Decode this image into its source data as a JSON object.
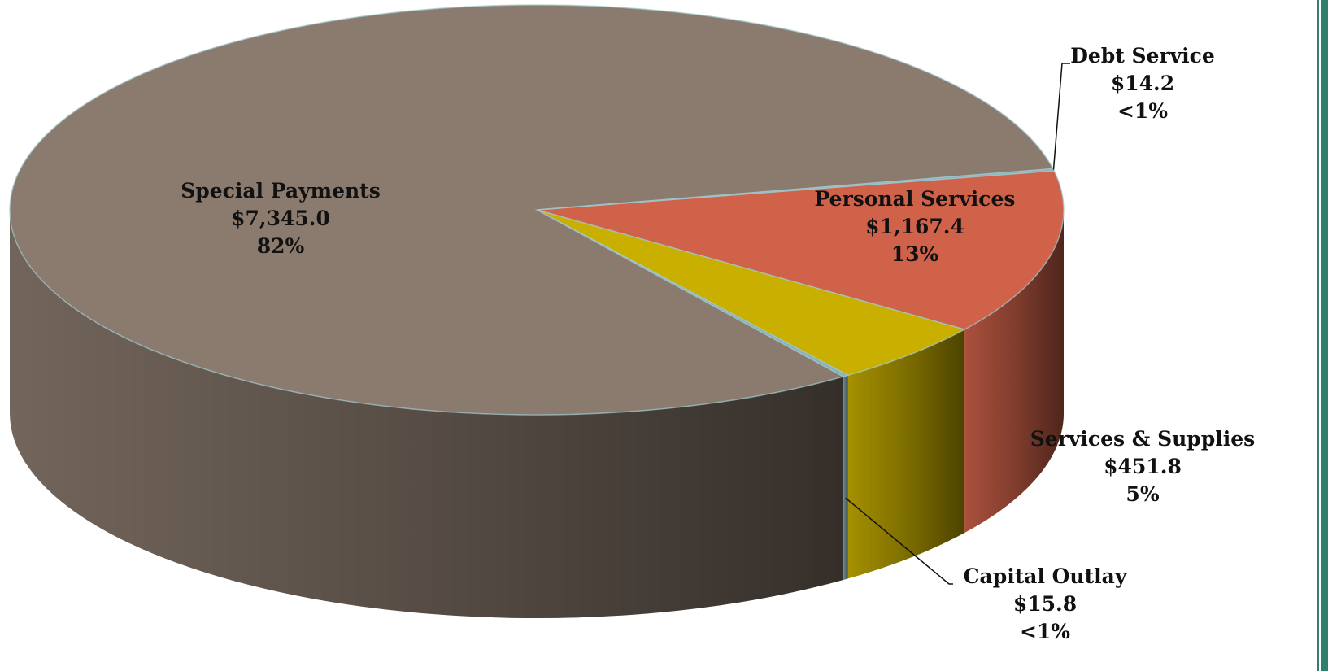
{
  "chart_data": {
    "type": "pie",
    "title": "",
    "slices": [
      {
        "label": "Personal Services",
        "amount_label": "$1,167.4",
        "value": 1167.4,
        "percent_label": "13%",
        "color": "#d0624a"
      },
      {
        "label": "Services & Supplies",
        "amount_label": "$451.8",
        "value": 451.8,
        "percent_label": "5%",
        "color": "#c9b000"
      },
      {
        "label": "Capital Outlay",
        "amount_label": "$15.8",
        "value": 15.8,
        "percent_label": "<1%",
        "color": "#8ab0b8"
      },
      {
        "label": "Special Payments",
        "amount_label": "$7,345.0",
        "value": 7345.0,
        "percent_label": "82%",
        "color": "#8b7b6f"
      },
      {
        "label": "Debt Service",
        "amount_label": "$14.2",
        "value": 14.2,
        "percent_label": "<1%",
        "color": "#8ab0b8"
      }
    ],
    "start_angle_deg": -11,
    "three_d": true,
    "legend": "none",
    "frame_color": "#2f7f6c"
  }
}
